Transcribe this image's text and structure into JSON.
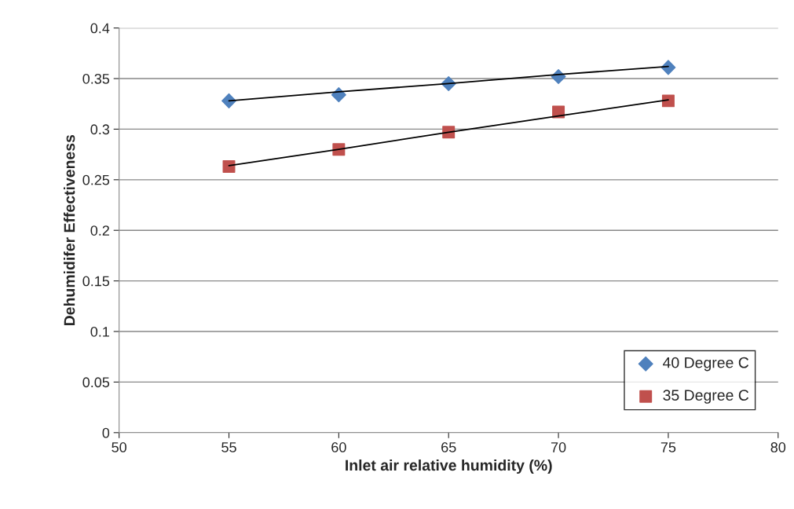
{
  "chart_data": {
    "type": "scatter",
    "xlabel": "Inlet air relative humidity (%)",
    "ylabel": "Dehumidifer Effectiveness",
    "x": [
      55,
      60,
      65,
      70,
      75
    ],
    "series": [
      {
        "name": "40 Degree C",
        "color": "#4f81bd",
        "marker": "diamond",
        "values": [
          0.328,
          0.334,
          0.345,
          0.352,
          0.361
        ]
      },
      {
        "name": "35 Degree C",
        "color": "#c0504d",
        "marker": "square",
        "values": [
          0.263,
          0.28,
          0.297,
          0.317,
          0.328
        ]
      },
      {
        "type": "line",
        "color": "#000000",
        "marker": "none",
        "values": [
          0.328,
          0.337,
          0.345,
          0.354,
          0.362
        ]
      },
      {
        "type": "line",
        "color": "#000000",
        "marker": "none",
        "values": [
          0.264,
          0.28,
          0.297,
          0.313,
          0.329
        ]
      }
    ],
    "xlim": [
      50,
      80
    ],
    "xticks": [
      50,
      55,
      60,
      65,
      70,
      75,
      80
    ],
    "ylim": [
      0,
      0.4
    ],
    "yticks": [
      0,
      0.05,
      0.1,
      0.15,
      0.2,
      0.25,
      0.3,
      0.35,
      0.4
    ],
    "grid": "y",
    "legend": "bottom right"
  }
}
